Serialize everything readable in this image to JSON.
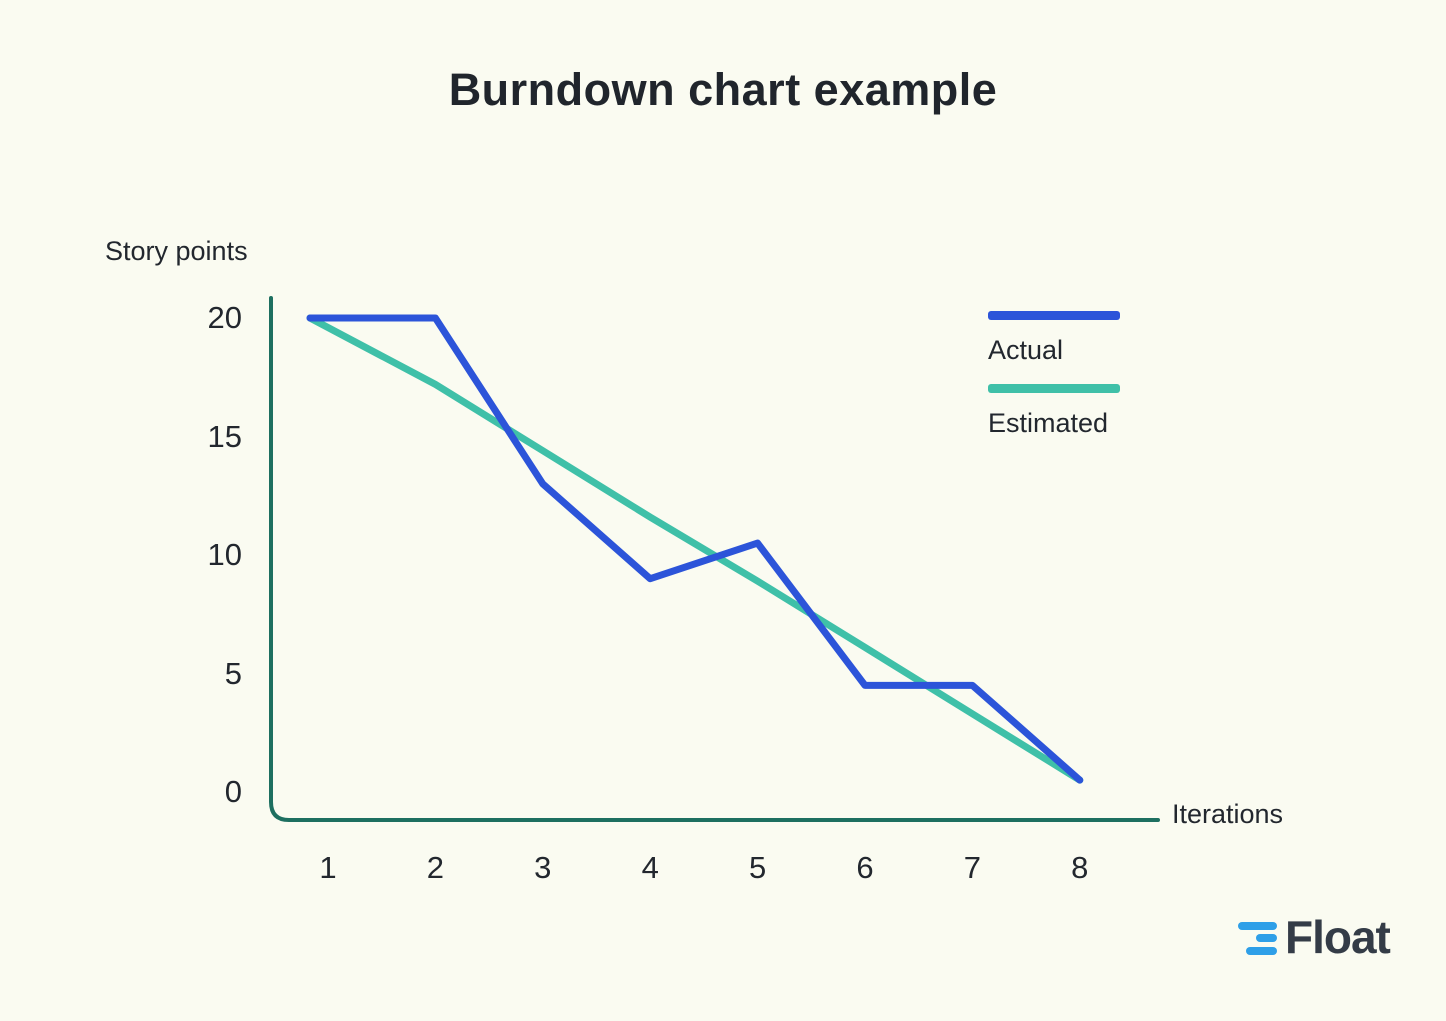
{
  "title": "Burndown chart example",
  "axes": {
    "y_label": "Story points",
    "x_label": "Iterations"
  },
  "legend": {
    "items": [
      {
        "label": "Actual",
        "color": "#2c54d9"
      },
      {
        "label": "Estimated",
        "color": "#3fc0a8"
      }
    ]
  },
  "chart_data": {
    "type": "line",
    "title": "Burndown chart example",
    "xlabel": "Iterations",
    "ylabel": "Story points",
    "categories": [
      1,
      2,
      3,
      4,
      5,
      6,
      7,
      8
    ],
    "x_ticks": [
      1,
      2,
      3,
      4,
      5,
      6,
      7,
      8
    ],
    "y_ticks": [
      0,
      5,
      10,
      15,
      20
    ],
    "ylim": [
      0,
      21
    ],
    "grid": false,
    "legend_position": "top-right",
    "series": [
      {
        "name": "Actual",
        "color": "#2c54d9",
        "values": [
          20,
          20,
          13,
          9,
          10.5,
          4.5,
          4.5,
          0.5
        ]
      },
      {
        "name": "Estimated",
        "color": "#3fc0a8",
        "values": [
          20,
          17.2,
          14.4,
          11.6,
          8.9,
          6.1,
          3.3,
          0.5
        ]
      }
    ]
  },
  "colors": {
    "background": "#fafbf1",
    "text": "#22272e",
    "axis_line": "#1d6f60",
    "actual_line": "#2c54d9",
    "estimated_line": "#3fc0a8",
    "logo_blue": "#2e9fe8",
    "logo_text": "#343c47"
  },
  "branding": {
    "logo_text": "Float"
  }
}
